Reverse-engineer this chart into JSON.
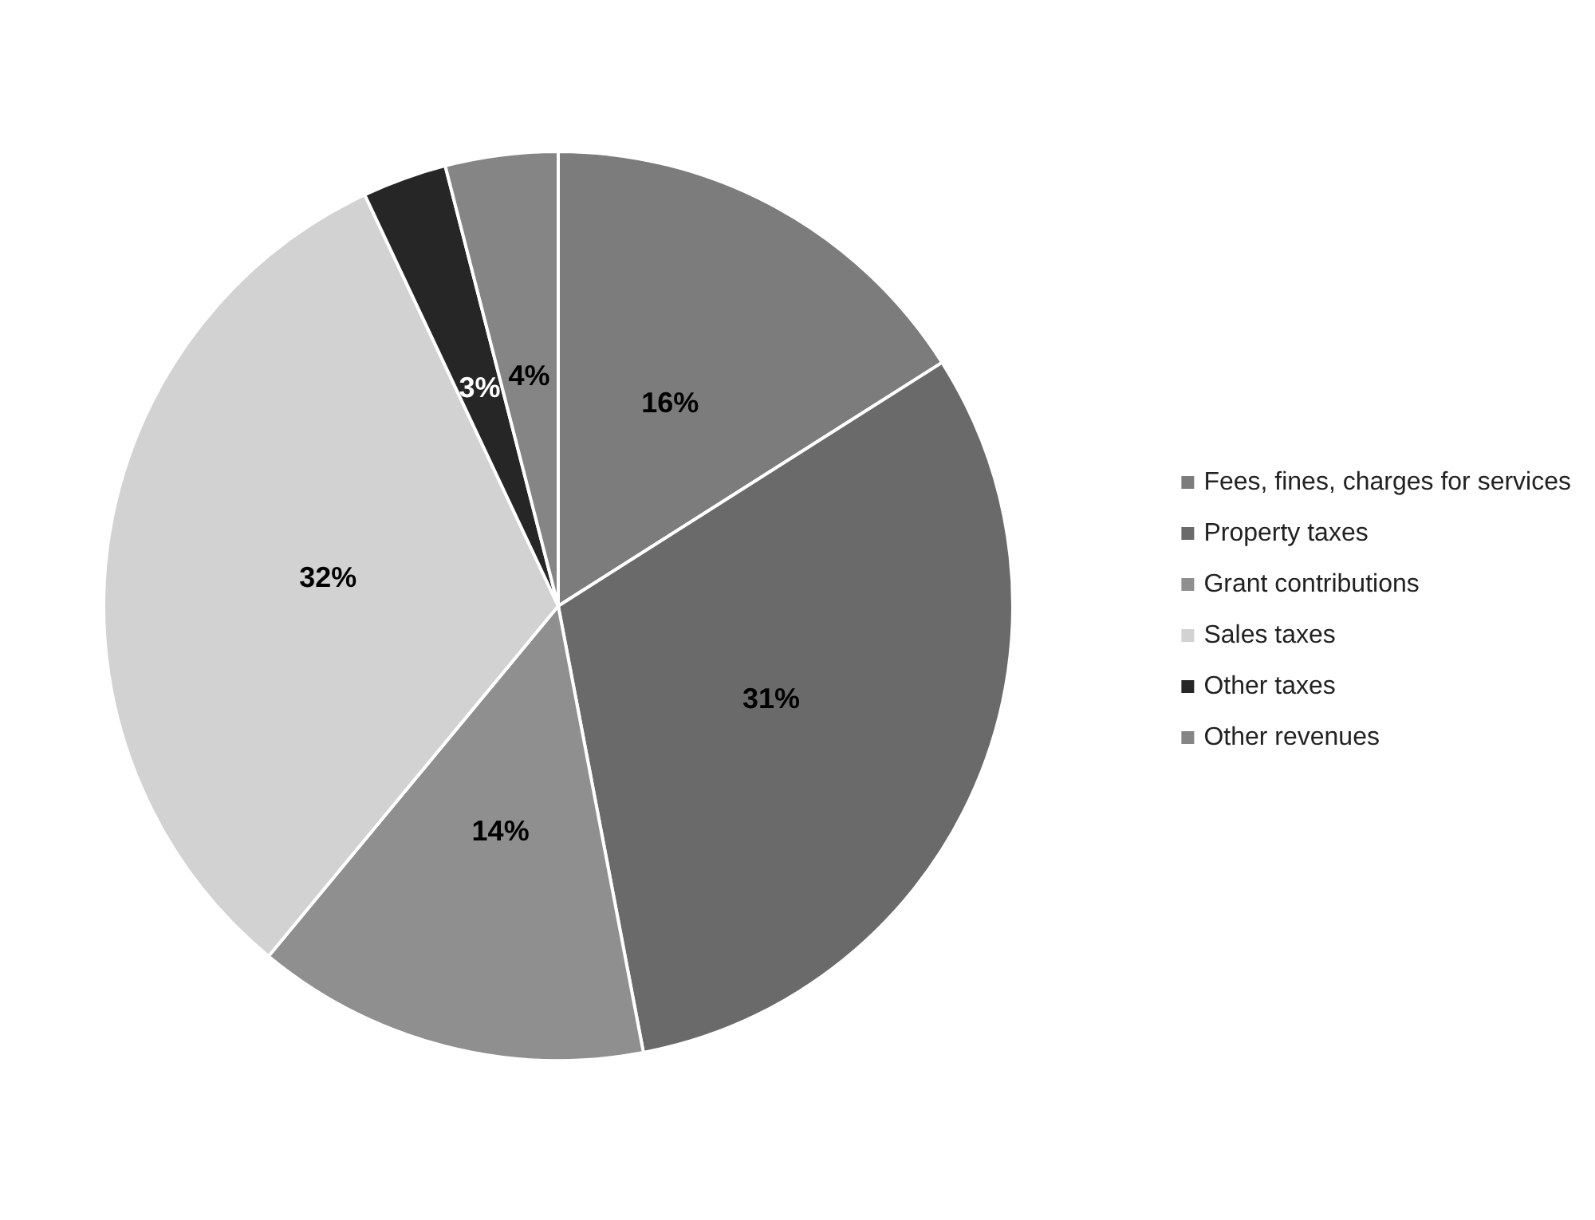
{
  "chart_data": {
    "type": "pie",
    "categories": [
      "Fees, fines, charges for services",
      "Property taxes",
      "Grant contributions",
      "Sales taxes",
      "Other taxes",
      "Other revenues"
    ],
    "values": [
      16,
      31,
      14,
      32,
      3,
      4
    ],
    "value_labels": [
      "16%",
      "31%",
      "14%",
      "32%",
      "3%",
      "4%"
    ],
    "colors": [
      "#7c7c7c",
      "#6a6a6a",
      "#8f8f8f",
      "#d2d2d2",
      "#262626",
      "#858585"
    ],
    "legend": "right"
  }
}
